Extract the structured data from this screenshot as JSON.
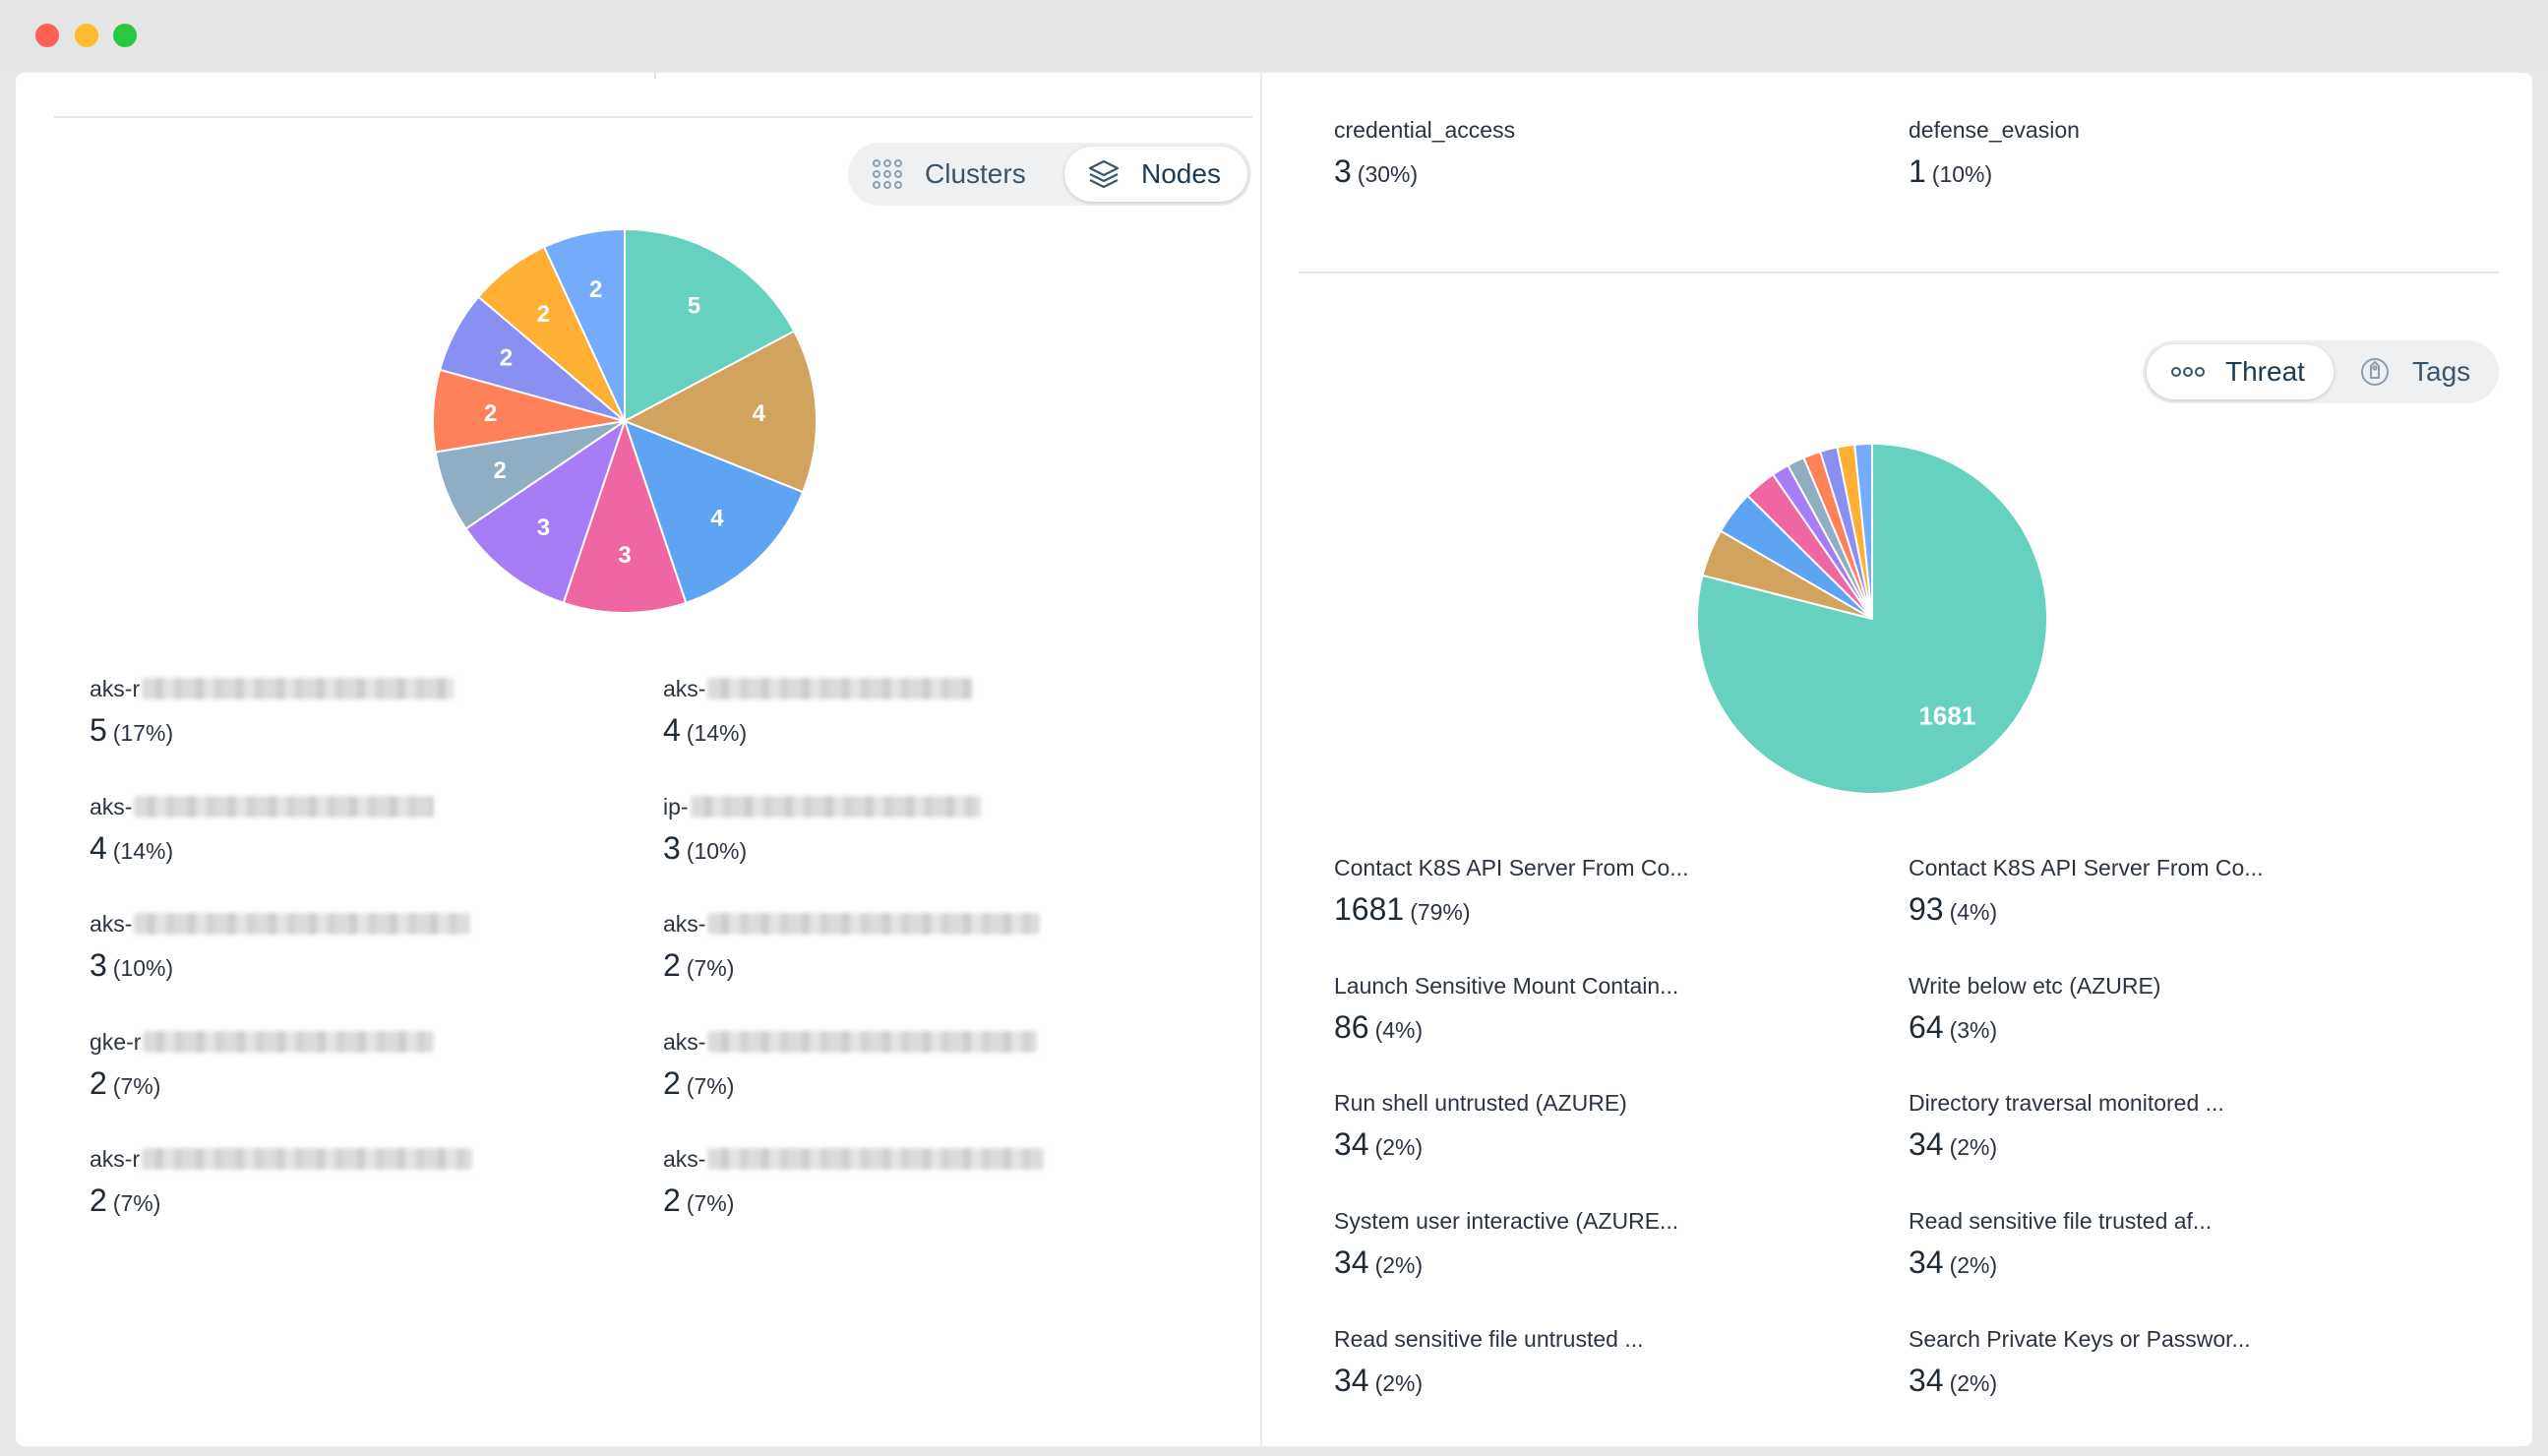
{
  "window": {
    "controls": [
      "close",
      "minimize",
      "maximize"
    ]
  },
  "left_panel": {
    "toggle": {
      "options": [
        {
          "label": "Clusters",
          "icon": "grid-dots-icon",
          "active": false
        },
        {
          "label": "Nodes",
          "icon": "layers-icon",
          "active": true
        }
      ]
    },
    "chart_data": {
      "type": "pie",
      "categories": [
        "aks-r",
        "aks-",
        "aks-",
        "ip-",
        "aks-",
        "aks-",
        "gke-r",
        "aks-",
        "aks-r",
        "aks-"
      ],
      "values": [
        5,
        4,
        4,
        3,
        3,
        2,
        2,
        2,
        2,
        2
      ],
      "colors": [
        "#67d1c0",
        "#d2a35f",
        "#5fa4f2",
        "#ef66a2",
        "#a77cf7",
        "#8fadc3",
        "#ff8159",
        "#8a8ff2",
        "#ffaf33",
        "#74acfb"
      ]
    },
    "legend": [
      {
        "prefix": "aks-r",
        "value": "5",
        "pct": "(17%)"
      },
      {
        "prefix": "aks-",
        "value": "4",
        "pct": "(14%)"
      },
      {
        "prefix": "aks-",
        "value": "4",
        "pct": "(14%)"
      },
      {
        "prefix": "ip-",
        "value": "3",
        "pct": "(10%)"
      },
      {
        "prefix": "aks-",
        "value": "3",
        "pct": "(10%)"
      },
      {
        "prefix": "aks-",
        "value": "2",
        "pct": "(7%)"
      },
      {
        "prefix": "gke-r",
        "value": "2",
        "pct": "(7%)"
      },
      {
        "prefix": "aks-",
        "value": "2",
        "pct": "(7%)"
      },
      {
        "prefix": "aks-r",
        "value": "2",
        "pct": "(7%)"
      },
      {
        "prefix": "aks-",
        "value": "2",
        "pct": "(7%)"
      }
    ]
  },
  "right_panel": {
    "top_legend": [
      {
        "name": "credential_access",
        "value": "3",
        "pct": "(30%)"
      },
      {
        "name": "defense_evasion",
        "value": "1",
        "pct": "(10%)"
      }
    ],
    "toggle": {
      "options": [
        {
          "label": "Threat",
          "icon": "three-circles-icon",
          "active": true
        },
        {
          "label": "Tags",
          "icon": "tag-icon",
          "active": false
        }
      ]
    },
    "chart_data": {
      "type": "pie",
      "categories": [
        "Contact K8S API Server From Co...",
        "Contact K8S API Server From Co...",
        "Launch Sensitive Mount Contain...",
        "Write below etc (AZURE)",
        "Run shell untrusted (AZURE)",
        "Directory traversal monitored ...",
        "System user interactive (AZURE...",
        "Read sensitive file trusted af...",
        "Read sensitive file untrusted ...",
        "Search Private Keys or Passwor..."
      ],
      "values": [
        1681,
        93,
        86,
        64,
        34,
        34,
        34,
        34,
        34,
        34
      ],
      "colors": [
        "#67d1c0",
        "#d2a35f",
        "#5fa4f2",
        "#ef66a2",
        "#a77cf7",
        "#8fadc3",
        "#ff8159",
        "#8a8ff2",
        "#ffaf33",
        "#74acfb"
      ]
    },
    "legend": [
      {
        "name": "Contact K8S API Server From Co...",
        "value": "1681",
        "pct": "(79%)"
      },
      {
        "name": "Contact K8S API Server From Co...",
        "value": "93",
        "pct": "(4%)"
      },
      {
        "name": "Launch Sensitive Mount Contain...",
        "value": "86",
        "pct": "(4%)"
      },
      {
        "name": "Write below etc (AZURE)",
        "value": "64",
        "pct": "(3%)"
      },
      {
        "name": "Run shell untrusted (AZURE)",
        "value": "34",
        "pct": "(2%)"
      },
      {
        "name": "Directory traversal monitored ...",
        "value": "34",
        "pct": "(2%)"
      },
      {
        "name": "System user interactive (AZURE...",
        "value": "34",
        "pct": "(2%)"
      },
      {
        "name": "Read sensitive file trusted af...",
        "value": "34",
        "pct": "(2%)"
      },
      {
        "name": "Read sensitive file untrusted ...",
        "value": "34",
        "pct": "(2%)"
      },
      {
        "name": "Search Private Keys or Passwor...",
        "value": "34",
        "pct": "(2%)"
      }
    ]
  }
}
